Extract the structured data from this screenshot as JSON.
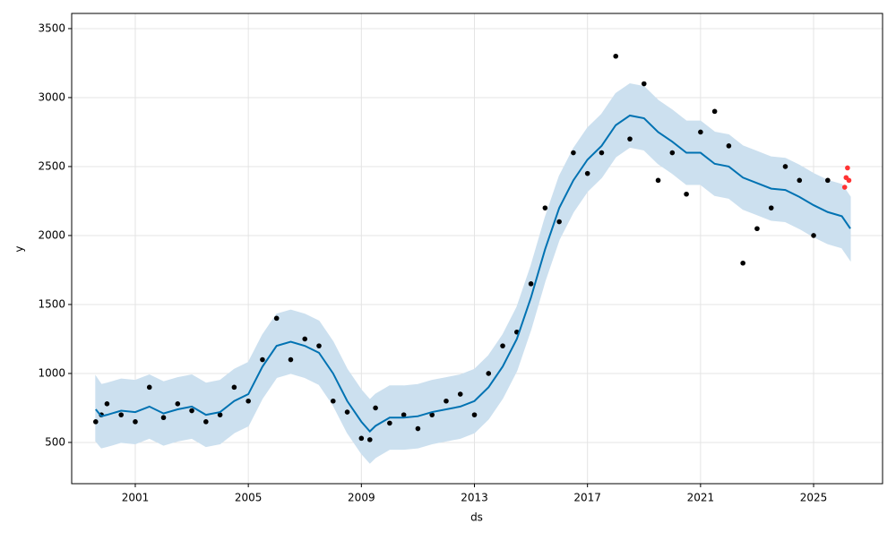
{
  "chart_data": {
    "type": "line",
    "x_label": "ds",
    "y_label": "y",
    "xlim": [
      1998.75,
      2027.44
    ],
    "ylim": [
      201,
      3610
    ],
    "xticks": [
      2001,
      2005,
      2009,
      2013,
      2017,
      2021,
      2025
    ],
    "yticks": [
      500,
      1000,
      1500,
      2000,
      2500,
      3000,
      3500
    ],
    "grid": true,
    "x": [
      1999.6,
      1999.8,
      2000,
      2000.5,
      2001,
      2001.5,
      2002,
      2002.5,
      2003,
      2003.5,
      2004,
      2004.5,
      2005,
      2005.5,
      2006,
      2006.5,
      2007,
      2007.5,
      2008,
      2008.5,
      2009,
      2009.3,
      2009.5,
      2010,
      2010.5,
      2011,
      2011.5,
      2012,
      2012.5,
      2013,
      2013.5,
      2014,
      2014.5,
      2015,
      2015.5,
      2016,
      2016.5,
      2017,
      2017.5,
      2018,
      2018.5,
      2019,
      2019.5,
      2020,
      2020.5,
      2021,
      2021.5,
      2022,
      2022.5,
      2023,
      2023.5,
      2024,
      2024.5,
      2025,
      2025.5,
      2026,
      2026.3
    ],
    "band": {
      "color": "#cce0ef",
      "upper": [
        980,
        920,
        930,
        960,
        950,
        990,
        940,
        970,
        990,
        930,
        950,
        1030,
        1080,
        1280,
        1430,
        1460,
        1430,
        1380,
        1230,
        1030,
        880,
        810,
        850,
        910,
        910,
        920,
        950,
        970,
        990,
        1030,
        1130,
        1280,
        1480,
        1780,
        2130,
        2430,
        2630,
        2780,
        2880,
        3030,
        3100,
        3080,
        2980,
        2910,
        2830,
        2830,
        2750,
        2730,
        2650,
        2610,
        2570,
        2560,
        2510,
        2450,
        2400,
        2370,
        2280
      ],
      "lower": [
        510,
        460,
        470,
        500,
        490,
        530,
        480,
        510,
        530,
        470,
        490,
        570,
        620,
        820,
        970,
        1000,
        970,
        920,
        770,
        570,
        420,
        350,
        390,
        450,
        450,
        460,
        490,
        510,
        530,
        570,
        670,
        820,
        1020,
        1320,
        1670,
        1970,
        2170,
        2320,
        2420,
        2570,
        2640,
        2620,
        2520,
        2450,
        2370,
        2370,
        2290,
        2270,
        2190,
        2150,
        2110,
        2100,
        2050,
        1990,
        1940,
        1910,
        1820
      ]
    },
    "series": [
      {
        "type": "line",
        "color": "#0072b2",
        "values": [
          740,
          690,
          700,
          730,
          720,
          760,
          710,
          740,
          760,
          700,
          720,
          800,
          850,
          1050,
          1200,
          1230,
          1200,
          1150,
          1000,
          800,
          650,
          580,
          620,
          680,
          680,
          690,
          720,
          740,
          760,
          800,
          900,
          1050,
          1250,
          1550,
          1900,
          2200,
          2400,
          2550,
          2650,
          2800,
          2870,
          2850,
          2750,
          2680,
          2600,
          2600,
          2520,
          2500,
          2420,
          2380,
          2340,
          2330,
          2280,
          2220,
          2170,
          2140,
          2050
        ]
      },
      {
        "type": "scatter",
        "color": "#000000",
        "values": [
          650,
          700,
          780,
          700,
          650,
          900,
          680,
          780,
          730,
          650,
          700,
          900,
          800,
          1100,
          1400,
          1100,
          1250,
          1200,
          800,
          720,
          530,
          520,
          750,
          640,
          700,
          600,
          700,
          800,
          850,
          700,
          1000,
          1200,
          1300,
          1650,
          2200,
          2100,
          2600,
          2450,
          2600,
          3300,
          2700,
          3100,
          2400,
          2600,
          2300,
          2750,
          2900,
          2650,
          1800,
          2050,
          2200,
          2500,
          2400,
          2000,
          2400,
          null,
          null
        ]
      },
      {
        "type": "scatter",
        "color": "#ff3333",
        "x": [
          2026.1,
          2026.15,
          2026.2,
          2026.25
        ],
        "values": [
          2350,
          2420,
          2490,
          2400
        ]
      }
    ]
  }
}
